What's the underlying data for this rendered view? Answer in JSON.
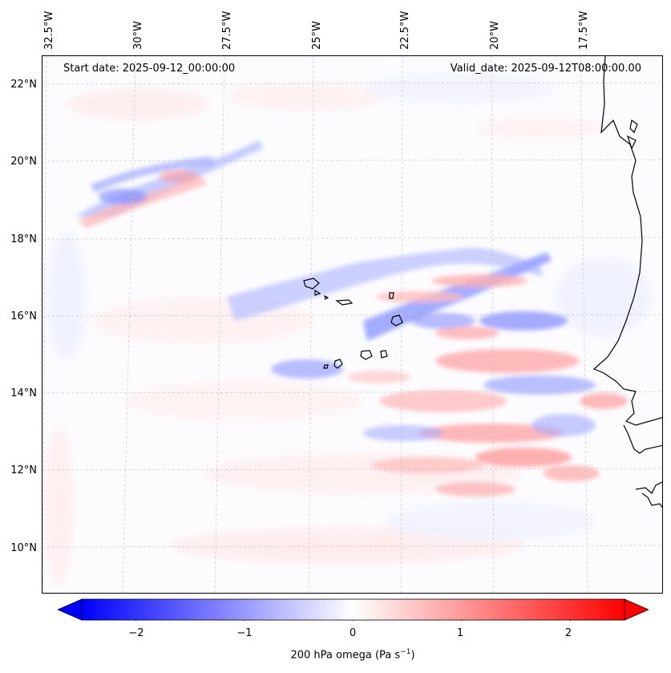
{
  "header": {
    "start_date": "Start date: 2025-09-12_00:00:00",
    "valid_date": "Valid_date: 2025-09-12T08:00:00.00"
  },
  "map": {
    "longitude_labels": [
      "32.5°W",
      "30°W",
      "27.5°W",
      "25°W",
      "22.5°W",
      "20°W",
      "17.5°W"
    ],
    "latitude_labels": [
      "22°N",
      "20°N",
      "18°N",
      "16°N",
      "14°N",
      "12°N",
      "10°N"
    ],
    "colors": {
      "negative": "#0000ff",
      "zero": "#ffffff",
      "positive": "#ff0000",
      "coast": "#000000",
      "grid": "#bbbbbb"
    }
  },
  "colorbar": {
    "ticks": [
      "−2",
      "−1",
      "0",
      "1",
      "2"
    ],
    "tick_values": [
      -2,
      -1,
      0,
      1,
      2
    ],
    "range": [
      -2.5,
      2.5
    ],
    "title_prefix": "200 hPa omega (Pa s",
    "title_exp": "−1",
    "title_suffix": ")"
  }
}
